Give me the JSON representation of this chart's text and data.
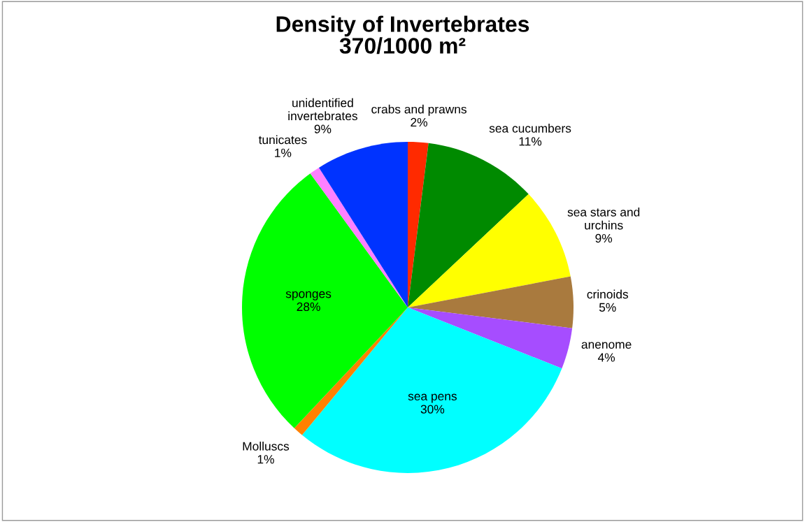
{
  "chart_data": {
    "type": "pie",
    "title": "Density of Invertebrates\n370/1000 m²",
    "categories": [
      "crabs and prawns",
      "sea cucumbers",
      "sea stars and\nurchins",
      "crinoids",
      "anenome",
      "sea pens",
      "Molluscs",
      "sponges",
      "tunicates",
      "unidentified\ninvertebrates"
    ],
    "values": [
      2,
      11,
      9,
      5,
      4,
      30,
      1,
      28,
      1,
      9
    ],
    "colors": [
      "#ff2a00",
      "#008a00",
      "#ffff00",
      "#a97a3e",
      "#a64dff",
      "#00ffff",
      "#ff8000",
      "#00ff00",
      "#ff80ff",
      "#0033ff"
    ],
    "value_labels": [
      "2%",
      "11%",
      "9%",
      "5%",
      "4%",
      "30%",
      "1%",
      "28%",
      "1%",
      "9%"
    ],
    "legend": false
  }
}
